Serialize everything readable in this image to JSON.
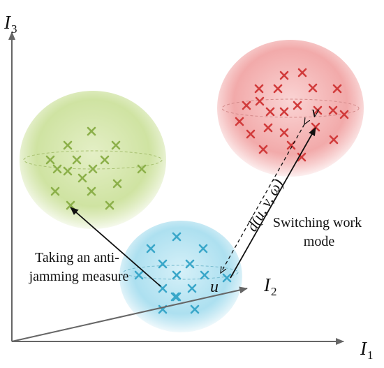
{
  "axes": {
    "i1": {
      "main": "I",
      "sub": "1"
    },
    "i2": {
      "main": "I",
      "sub": "2"
    },
    "i3": {
      "main": "I",
      "sub": "3"
    }
  },
  "points": {
    "u": "u",
    "v": "v"
  },
  "distance_label": "d(u, v, ω)",
  "annotations": {
    "switching_line1": "Switching work",
    "switching_line2": "mode",
    "antijam_line1": "Taking an anti-",
    "antijam_line2": "jamming measure"
  },
  "clusters": {
    "green": {
      "color": "#8cb04a",
      "count": 16
    },
    "blue": {
      "color": "#3aa7c9",
      "count": 15
    },
    "red": {
      "color": "#d13b3b",
      "count": 23
    }
  },
  "colors": {
    "axis": "#666666",
    "arrow": "#111111",
    "green_sphere": "#c4dc8c",
    "blue_sphere": "#9fd9ec",
    "red_sphere": "#ef9a9a"
  }
}
